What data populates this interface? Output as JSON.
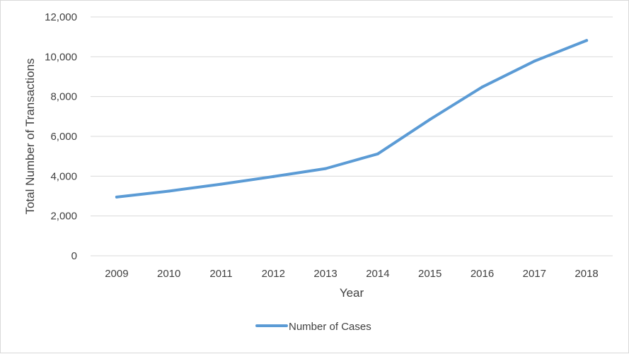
{
  "chart_data": {
    "type": "line",
    "title": "",
    "xlabel": "Year",
    "ylabel": "Total Number of Transactions",
    "categories": [
      "2009",
      "2010",
      "2011",
      "2012",
      "2013",
      "2014",
      "2015",
      "2016",
      "2017",
      "2018"
    ],
    "series": [
      {
        "name": "Number of Cases",
        "values": [
          2950,
          3250,
          3600,
          3980,
          4380,
          5120,
          6850,
          8480,
          9780,
          10820
        ],
        "color": "#5b9bd5"
      }
    ],
    "ylim": [
      0,
      12000
    ],
    "yticks": [
      0,
      2000,
      4000,
      6000,
      8000,
      10000,
      12000
    ],
    "ytick_labels": [
      "0",
      "2,000",
      "4,000",
      "6,000",
      "8,000",
      "10,000",
      "12,000"
    ],
    "grid": "horizontal",
    "legend_position": "bottom"
  }
}
